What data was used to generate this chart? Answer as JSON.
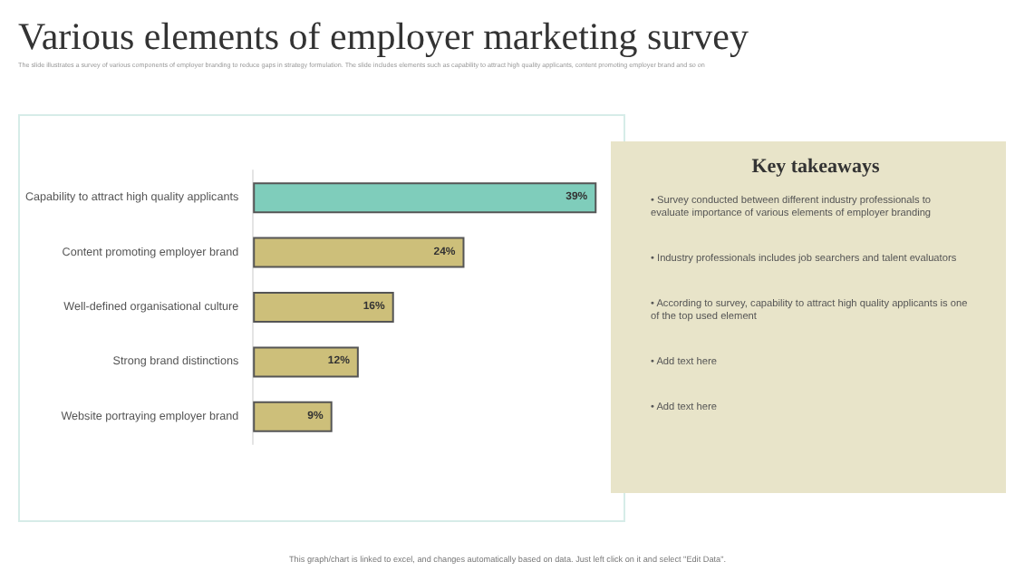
{
  "chart_data": [
    {
      "type": "bar",
      "orientation": "horizontal",
      "tick_labels": "y",
      "title": "Various elements of employer marketing survey",
      "subtitle": "The slide illustrates a survey of various components of employer branding to reduce gaps in strategy formulation. The slide includes elements such as capability to attract high quality applicants, content promoting employer brand and so on",
      "categories": [
        "Capability to attract high quality applicants",
        "Content promoting employer brand",
        "Well-defined organisational culture",
        "Strong brand distinctions",
        "Website portraying employer brand"
      ],
      "values": [
        39,
        24,
        16,
        12,
        9
      ],
      "colors": [
        "#7fcdbb",
        "#cdbf7a",
        "#cdbf7a",
        "#cdbf7a",
        "#cdbf7a"
      ],
      "value_labels": [
        "39%",
        "24%",
        "16%",
        "12%",
        "9%"
      ],
      "annotations": [
        "This graph/chart is linked to excel, and changes automatically based on data. Just left click on it and select \"Edit Data\"."
      ]
    },
    {
      "type": "other",
      "title": "Key takeaways",
      "annotations": [
        "• Survey conducted between different industry professionals to evaluate importance of various elements of employer branding",
        "• Industry professionals includes job searchers and talent evaluators",
        "• According to survey, capability to attract high quality applicants is one of the top used element",
        "• Add text here",
        "• Add text here"
      ]
    }
  ]
}
